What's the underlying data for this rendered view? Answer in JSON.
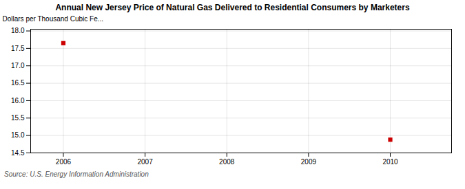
{
  "chart_data": {
    "type": "scatter",
    "title": "Annual New Jersey Price of Natural Gas Delivered to Residential Consumers by Marketers",
    "ylabel": "Dollars per Thousand Cubic Fe...",
    "source": "Source: U.S. Energy Information Administration",
    "x": [
      2006,
      2010
    ],
    "values": [
      17.65,
      14.88
    ],
    "color": "#cc0000",
    "marker": "square",
    "xlim": [
      2005.6,
      2010.75
    ],
    "xticks": [
      2006,
      2007,
      2008,
      2009,
      2010
    ],
    "ylim": [
      14.5,
      18.05
    ],
    "yticks": [
      14.5,
      {
        "value": 15.0,
        "label": "15.0"
      },
      15.5,
      {
        "value": 16.0,
        "label": "16.0"
      },
      16.5,
      {
        "value": 17.0,
        "label": "17.0"
      },
      17.5,
      {
        "value": 18.0,
        "label": "18.0"
      }
    ],
    "grid": true
  }
}
